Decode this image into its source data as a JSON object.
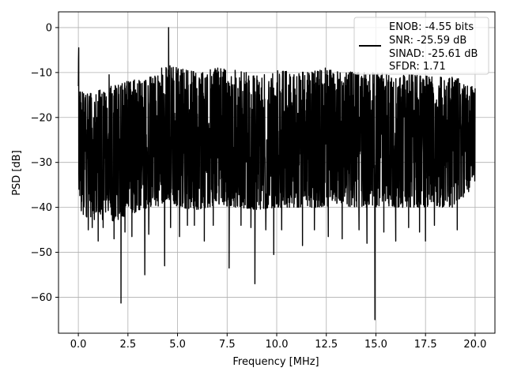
{
  "chart_data": {
    "type": "line",
    "title": "",
    "xlabel": "Frequency [MHz]",
    "ylabel": "PSD [dB]",
    "xlim": [
      -1.0,
      21.0
    ],
    "ylim": [
      -68.0,
      3.5
    ],
    "xticks": [
      0.0,
      2.5,
      5.0,
      7.5,
      10.0,
      12.5,
      15.0,
      17.5,
      20.0
    ],
    "xtick_labels": [
      "0.0",
      "2.5",
      "5.0",
      "7.5",
      "10.0",
      "12.5",
      "15.0",
      "17.5",
      "20.0"
    ],
    "yticks": [
      0,
      -10,
      -20,
      -30,
      -40,
      -50,
      -60
    ],
    "ytick_labels": [
      "0",
      "−10",
      "−20",
      "−30",
      "−40",
      "−50",
      "−60"
    ],
    "grid": true,
    "legend_location": "upper right",
    "legend_lines": [
      "ENOB: -4.55 bits",
      "SNR: -25.59 dB",
      "SINAD: -25.61 dB",
      "SFDR: 1.71"
    ],
    "series": [
      {
        "color": "#000000",
        "x_range": [
          0.0,
          20.0
        ],
        "num_points": 2400,
        "envelope": {
          "x": [
            0.0,
            0.05,
            0.3,
            1.0,
            2.0,
            3.0,
            3.5,
            4.0,
            4.5,
            5.0,
            6.0,
            7.0,
            8.0,
            9.0,
            10.0,
            11.0,
            12.0,
            13.0,
            14.0,
            15.0,
            16.0,
            17.0,
            18.0,
            19.0,
            20.0
          ],
          "upper": [
            -4.5,
            -12.5,
            -15.0,
            -14.0,
            -12.5,
            -11.5,
            -11.0,
            -10.5,
            -8.0,
            -9.0,
            -10.0,
            -9.0,
            -9.5,
            -10.5,
            -9.5,
            -10.0,
            -9.5,
            -9.5,
            -10.0,
            -10.0,
            -10.5,
            -10.5,
            -11.0,
            -11.0,
            -13.5
          ],
          "lower": [
            -28.0,
            -40.0,
            -42.0,
            -43.0,
            -43.0,
            -41.0,
            -40.0,
            -40.0,
            -38.0,
            -40.0,
            -40.5,
            -39.5,
            -40.0,
            -40.5,
            -40.0,
            -40.0,
            -40.0,
            -39.5,
            -40.0,
            -40.0,
            -40.0,
            -40.0,
            -40.0,
            -40.0,
            -35.0
          ]
        },
        "peaks": [
          [
            4.55,
            0.0
          ],
          [
            0.02,
            -4.5
          ],
          [
            1.55,
            -10.5
          ],
          [
            2.45,
            -12.0
          ],
          [
            4.2,
            -9.0
          ],
          [
            6.95,
            -9.5
          ],
          [
            9.85,
            -9.5
          ],
          [
            12.45,
            -9.0
          ]
        ],
        "dips": [
          [
            0.5,
            -45.0
          ],
          [
            0.7,
            -44.5
          ],
          [
            1.0,
            -47.5
          ],
          [
            1.25,
            -44.5
          ],
          [
            1.8,
            -47.0
          ],
          [
            2.15,
            -61.3
          ],
          [
            2.35,
            -45.5
          ],
          [
            2.7,
            -46.5
          ],
          [
            3.35,
            -55.0
          ],
          [
            3.55,
            -46.0
          ],
          [
            4.35,
            -53.0
          ],
          [
            4.65,
            -44.5
          ],
          [
            5.1,
            -46.5
          ],
          [
            5.5,
            -44.0
          ],
          [
            5.85,
            -44.0
          ],
          [
            6.35,
            -47.5
          ],
          [
            6.8,
            -44.0
          ],
          [
            7.6,
            -53.5
          ],
          [
            8.2,
            -44.0
          ],
          [
            8.7,
            -44.5
          ],
          [
            8.9,
            -57.0
          ],
          [
            9.45,
            -45.0
          ],
          [
            9.85,
            -50.5
          ],
          [
            10.25,
            -45.0
          ],
          [
            11.3,
            -48.5
          ],
          [
            11.9,
            -45.0
          ],
          [
            12.6,
            -46.5
          ],
          [
            13.3,
            -47.0
          ],
          [
            14.15,
            -45.0
          ],
          [
            14.55,
            -48.0
          ],
          [
            14.95,
            -65.0
          ],
          [
            15.4,
            -45.5
          ],
          [
            16.0,
            -47.5
          ],
          [
            16.65,
            -44.5
          ],
          [
            17.2,
            -45.5
          ],
          [
            17.5,
            -47.5
          ],
          [
            17.95,
            -44.0
          ],
          [
            19.1,
            -45.0
          ]
        ]
      }
    ]
  }
}
